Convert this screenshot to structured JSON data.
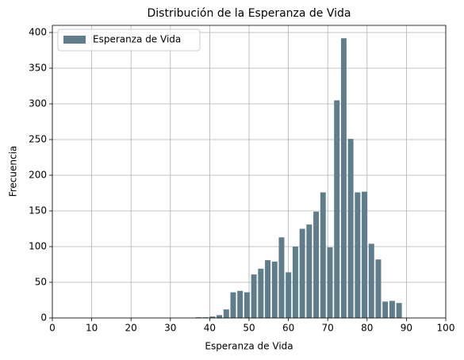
{
  "chart_data": {
    "type": "histogram",
    "title": "Distribución de la Esperanza de Vida",
    "x_label": "Esperanza de Vida",
    "y_label": "Frecuencia",
    "series": [
      {
        "name": "Esperanza de Vida",
        "color": "#607d8b",
        "bins": [
          36.3,
          38.06,
          39.81,
          41.57,
          43.33,
          45.09,
          46.84,
          48.6,
          50.36,
          52.11,
          53.87,
          55.63,
          57.38,
          59.14,
          60.9,
          62.66,
          64.41,
          66.17,
          67.93,
          69.68,
          71.44,
          73.2,
          74.95,
          76.71,
          78.47,
          80.23,
          81.98,
          83.74,
          85.5,
          87.25,
          89.01
        ],
        "values": [
          1,
          1,
          2,
          4,
          12,
          36,
          38,
          36,
          61,
          69,
          81,
          79,
          113,
          64,
          100,
          125,
          131,
          149,
          176,
          99,
          305,
          392,
          251,
          176,
          177,
          104,
          82,
          23,
          24,
          21
        ]
      }
    ],
    "xlim": [
      0,
      100
    ],
    "xticks": [
      0,
      10,
      20,
      30,
      40,
      50,
      60,
      70,
      80,
      90,
      100
    ],
    "ylim": [
      0,
      410
    ],
    "yticks": [
      0,
      50,
      100,
      150,
      200,
      250,
      300,
      350,
      400
    ],
    "grid": true,
    "legend": "upper left"
  }
}
